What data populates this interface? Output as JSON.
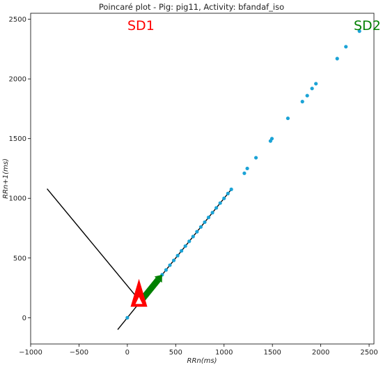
{
  "chart_data": {
    "type": "scatter",
    "title": "Poincaré plot - Pig: pig11, Activity: bfandaf_iso",
    "xlabel": "RRn(ms)",
    "ylabel": "RRn+1(ms)",
    "xlim": [
      -1000,
      2550
    ],
    "ylim": [
      -220,
      2550
    ],
    "xticks": [
      -1000,
      -500,
      0,
      500,
      1000,
      1500,
      2000,
      2500
    ],
    "yticks": [
      0,
      500,
      1000,
      1500,
      2000,
      2500
    ],
    "grid": false,
    "colors": {
      "points": "#1ba3d6",
      "identity_line": "#000000",
      "sd1": "#ff0000",
      "sd2": "#008000"
    },
    "annotations": [
      {
        "text": "SD1",
        "color": "#ff0000"
      },
      {
        "text": "SD2",
        "color": "#008000"
      }
    ],
    "series": [
      {
        "type": "scatter",
        "points": [
          [
            0,
            0
          ],
          [
            120,
            120
          ],
          [
            160,
            160
          ],
          [
            200,
            200
          ],
          [
            240,
            240
          ],
          [
            280,
            280
          ],
          [
            320,
            320
          ],
          [
            360,
            360
          ],
          [
            400,
            400
          ],
          [
            440,
            440
          ],
          [
            480,
            480
          ],
          [
            520,
            520
          ],
          [
            560,
            560
          ],
          [
            600,
            600
          ],
          [
            640,
            640
          ],
          [
            680,
            680
          ],
          [
            720,
            720
          ],
          [
            760,
            760
          ],
          [
            800,
            800
          ],
          [
            840,
            840
          ],
          [
            880,
            880
          ],
          [
            920,
            920
          ],
          [
            960,
            960
          ],
          [
            1000,
            1000
          ],
          [
            1040,
            1040
          ],
          [
            1075,
            1075
          ],
          [
            1210,
            1210
          ],
          [
            1240,
            1250
          ],
          [
            1330,
            1340
          ],
          [
            1480,
            1480
          ],
          [
            1495,
            1500
          ],
          [
            1660,
            1670
          ],
          [
            1810,
            1810
          ],
          [
            1860,
            1860
          ],
          [
            1910,
            1920
          ],
          [
            1950,
            1960
          ],
          [
            2170,
            2170
          ],
          [
            2260,
            2270
          ],
          [
            2400,
            2400
          ]
        ]
      },
      {
        "type": "line",
        "points": [
          [
            -100,
            -100
          ],
          [
            1080,
            1080
          ]
        ]
      },
      {
        "type": "line",
        "points": [
          [
            -830,
            1080
          ],
          [
            120,
            150
          ]
        ]
      }
    ],
    "sd1_arrow": {
      "from": [
        120,
        150
      ],
      "to": [
        140,
        135
      ]
    },
    "sd2_arrow": {
      "from": [
        150,
        150
      ],
      "to": [
        360,
        360
      ]
    }
  }
}
